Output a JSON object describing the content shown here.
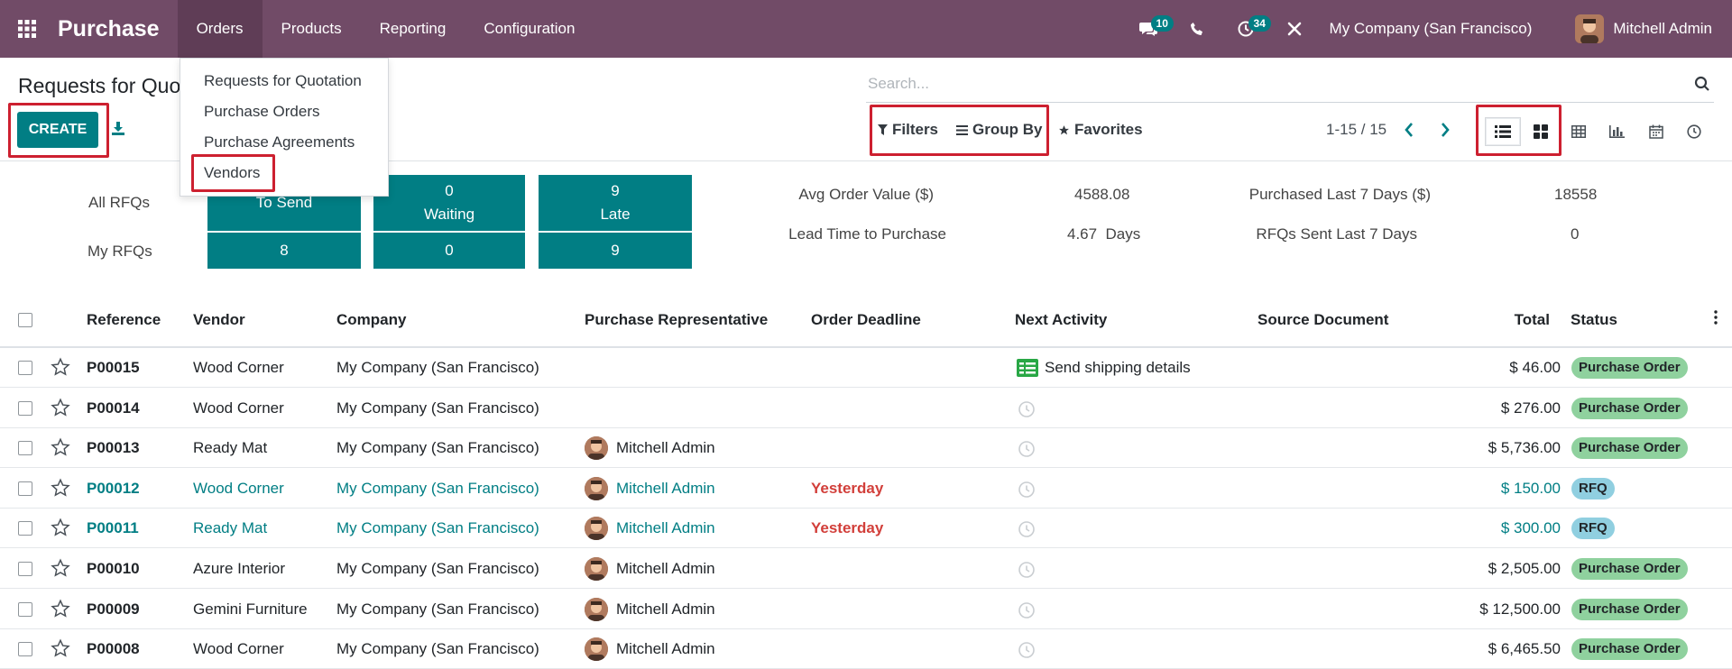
{
  "navbar": {
    "brand": "Purchase",
    "menus": [
      "Orders",
      "Products",
      "Reporting",
      "Configuration"
    ],
    "messages_count": "10",
    "activities_count": "34",
    "company": "My Company (San Francisco)",
    "user": "Mitchell Admin",
    "color": "#714b67"
  },
  "page": {
    "title": "Requests for Quo",
    "create_label": "CREATE"
  },
  "orders_menu": {
    "items": [
      "Requests for Quotation",
      "Purchase Orders",
      "Purchase Agreements",
      "Vendors"
    ]
  },
  "search": {
    "placeholder": "Search...",
    "filters_label": "Filters",
    "groupby_label": "Group By",
    "favorites_label": "Favorites",
    "pager": "1-15 / 15"
  },
  "dashboard": {
    "all_rfqs_label": "All RFQs",
    "my_rfqs_label": "My RFQs",
    "tiles_top": [
      {
        "count": "",
        "label": "To Send"
      },
      {
        "count": "0",
        "label": "Waiting"
      },
      {
        "count": "9",
        "label": "Late"
      }
    ],
    "tiles_bottom": [
      "8",
      "0",
      "9"
    ],
    "stats": {
      "avg_order_label": "Avg Order Value ($)",
      "avg_order_value": "4588.08",
      "lead_time_label": "Lead Time to Purchase",
      "lead_time_value": "4.67  Days",
      "purchased_label": "Purchased Last 7 Days ($)",
      "purchased_value": "18558",
      "rfqs_sent_label": "RFQs Sent Last 7 Days",
      "rfqs_sent_value": "0"
    }
  },
  "table": {
    "columns": [
      "Reference",
      "Vendor",
      "Company",
      "Purchase Representative",
      "Order Deadline",
      "Next Activity",
      "Source Document",
      "Total",
      "Status"
    ],
    "rows": [
      {
        "ref": "P00015",
        "vendor": "Wood Corner",
        "company": "My Company (San Francisco)",
        "rep": "",
        "deadline": "",
        "activity": "Send shipping details",
        "total": "$ 46.00",
        "status": "Purchase Order"
      },
      {
        "ref": "P00014",
        "vendor": "Wood Corner",
        "company": "My Company (San Francisco)",
        "rep": "",
        "deadline": "",
        "activity": "",
        "total": "$ 276.00",
        "status": "Purchase Order"
      },
      {
        "ref": "P00013",
        "vendor": "Ready Mat",
        "company": "My Company (San Francisco)",
        "rep": "Mitchell Admin",
        "deadline": "",
        "activity": "",
        "total": "$ 5,736.00",
        "status": "Purchase Order"
      },
      {
        "ref": "P00012",
        "vendor": "Wood Corner",
        "company": "My Company (San Francisco)",
        "rep": "Mitchell Admin",
        "deadline": "Yesterday",
        "activity": "",
        "total": "$ 150.00",
        "status": "RFQ"
      },
      {
        "ref": "P00011",
        "vendor": "Ready Mat",
        "company": "My Company (San Francisco)",
        "rep": "Mitchell Admin",
        "deadline": "Yesterday",
        "activity": "",
        "total": "$ 300.00",
        "status": "RFQ"
      },
      {
        "ref": "P00010",
        "vendor": "Azure Interior",
        "company": "My Company (San Francisco)",
        "rep": "Mitchell Admin",
        "deadline": "",
        "activity": "",
        "total": "$ 2,505.00",
        "status": "Purchase Order"
      },
      {
        "ref": "P00009",
        "vendor": "Gemini Furniture",
        "company": "My Company (San Francisco)",
        "rep": "Mitchell Admin",
        "deadline": "",
        "activity": "",
        "total": "$ 12,500.00",
        "status": "Purchase Order"
      },
      {
        "ref": "P00008",
        "vendor": "Wood Corner",
        "company": "My Company (San Francisco)",
        "rep": "Mitchell Admin",
        "deadline": "",
        "activity": "",
        "total": "$ 6,465.50",
        "status": "Purchase Order"
      }
    ]
  }
}
